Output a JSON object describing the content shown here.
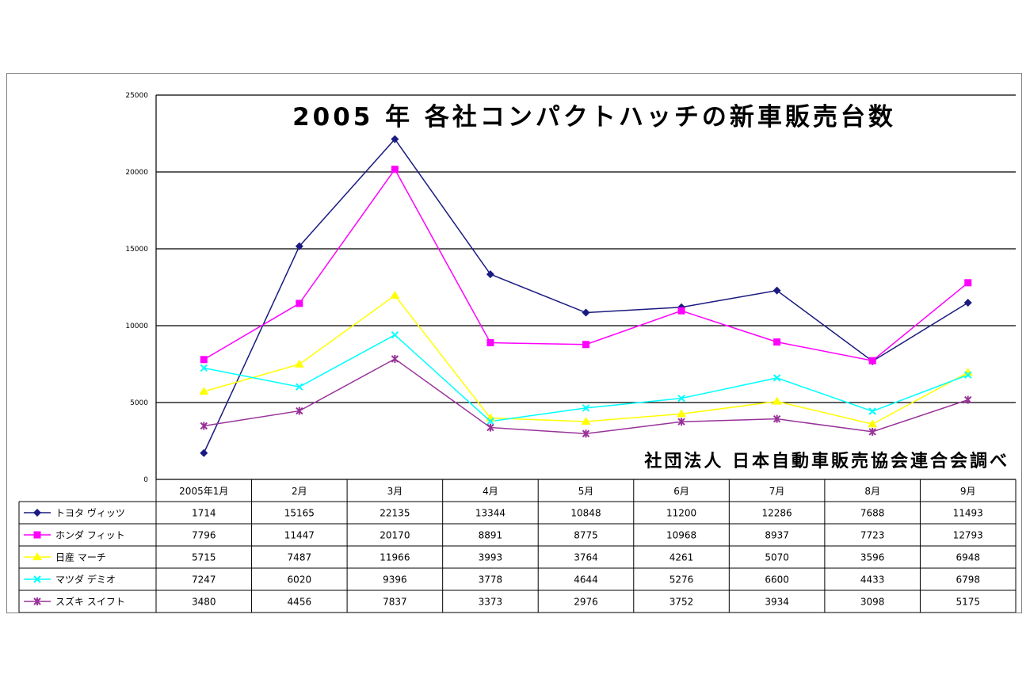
{
  "chart_data": {
    "type": "line",
    "title": "2005 年 各社コンパクトハッチの新車販売台数",
    "source_note": "社団法人  日本自動車販売協会連合会調べ",
    "categories": [
      "2005年1月",
      "2月",
      "3月",
      "4月",
      "5月",
      "6月",
      "7月",
      "8月",
      "9月"
    ],
    "ylim": [
      0,
      25000
    ],
    "yticks": [
      "0",
      "5000",
      "10000",
      "15000",
      "20000",
      "25000"
    ],
    "grid": true,
    "legend": "data-table-left",
    "series": [
      {
        "name": "トヨタ ヴィッツ",
        "color": "#1a1a80",
        "marker": "diamond",
        "values": [
          1714,
          15165,
          22135,
          13344,
          10848,
          11200,
          12286,
          7688,
          11493
        ],
        "labels": [
          "1714",
          "15165",
          "22135",
          "13344",
          "10848",
          "11200",
          "12286",
          "7688",
          "11493"
        ]
      },
      {
        "name": "ホンダ フィット",
        "color": "#ff00ff",
        "marker": "square",
        "values": [
          7796,
          11447,
          20170,
          8891,
          8775,
          10968,
          8937,
          7723,
          12793
        ],
        "labels": [
          "7796",
          "11447",
          "20170",
          "8891",
          "8775",
          "10968",
          "8937",
          "7723",
          "12793"
        ]
      },
      {
        "name": "日産 マーチ",
        "color": "#ffff00",
        "marker": "triangle",
        "values": [
          5715,
          7487,
          11966,
          3993,
          3764,
          4261,
          5070,
          3596,
          6948
        ],
        "labels": [
          "5715",
          "7487",
          "11966",
          "3993",
          "3764",
          "4261",
          "5070",
          "3596",
          "6948"
        ]
      },
      {
        "name": "マツダ デミオ",
        "color": "#00ffff",
        "marker": "x",
        "values": [
          7247,
          6020,
          9396,
          3778,
          4644,
          5276,
          6600,
          4433,
          6798
        ],
        "labels": [
          "7247",
          "6020",
          "9396",
          "3778",
          "4644",
          "5276",
          "6600",
          "4433",
          "6798"
        ]
      },
      {
        "name": "スズキ スイフト",
        "color": "#993399",
        "marker": "star",
        "values": [
          3480,
          4456,
          7837,
          3373,
          2976,
          3752,
          3934,
          3098,
          5175
        ],
        "labels": [
          "3480",
          "4456",
          "7837",
          "3373",
          "2976",
          "3752",
          "3934",
          "3098",
          "5175"
        ]
      }
    ]
  }
}
